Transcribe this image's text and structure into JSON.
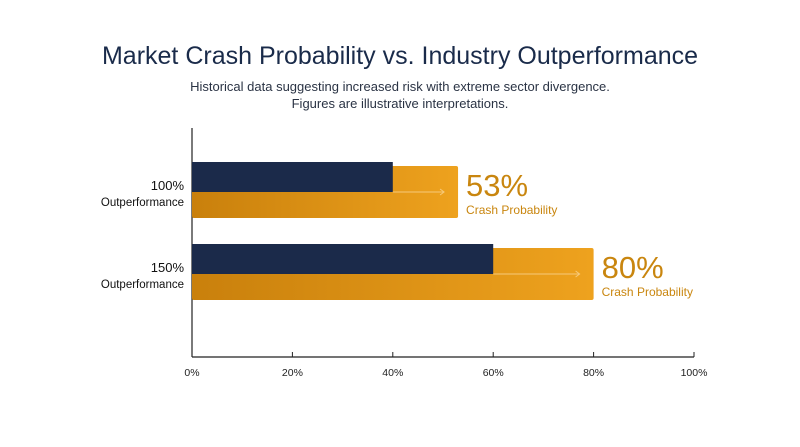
{
  "chart_data": {
    "type": "bar",
    "title": "Market Crash Probability vs. Industry Outperformance",
    "subtitle_lines": [
      "Historical data suggesting increased risk with extreme sector divergence.",
      "Figures are illustrative interpretations."
    ],
    "categories": [
      {
        "line1": "100%",
        "line2": "Outperformance"
      },
      {
        "line1": "150%",
        "line2": "Outperformance"
      }
    ],
    "series": [
      {
        "name": "Crash Probability",
        "values": [
          53,
          80
        ],
        "labels": [
          "53%",
          "80%"
        ],
        "color": "#e8a020"
      },
      {
        "values": [
          40,
          60
        ],
        "color": "#1b2a4a"
      }
    ],
    "value_caption": "Crash Probability",
    "xlim": [
      0,
      100
    ],
    "x_ticks": [
      "0%",
      "20%",
      "40%",
      "60%",
      "80%",
      "100%"
    ],
    "grid": false
  }
}
